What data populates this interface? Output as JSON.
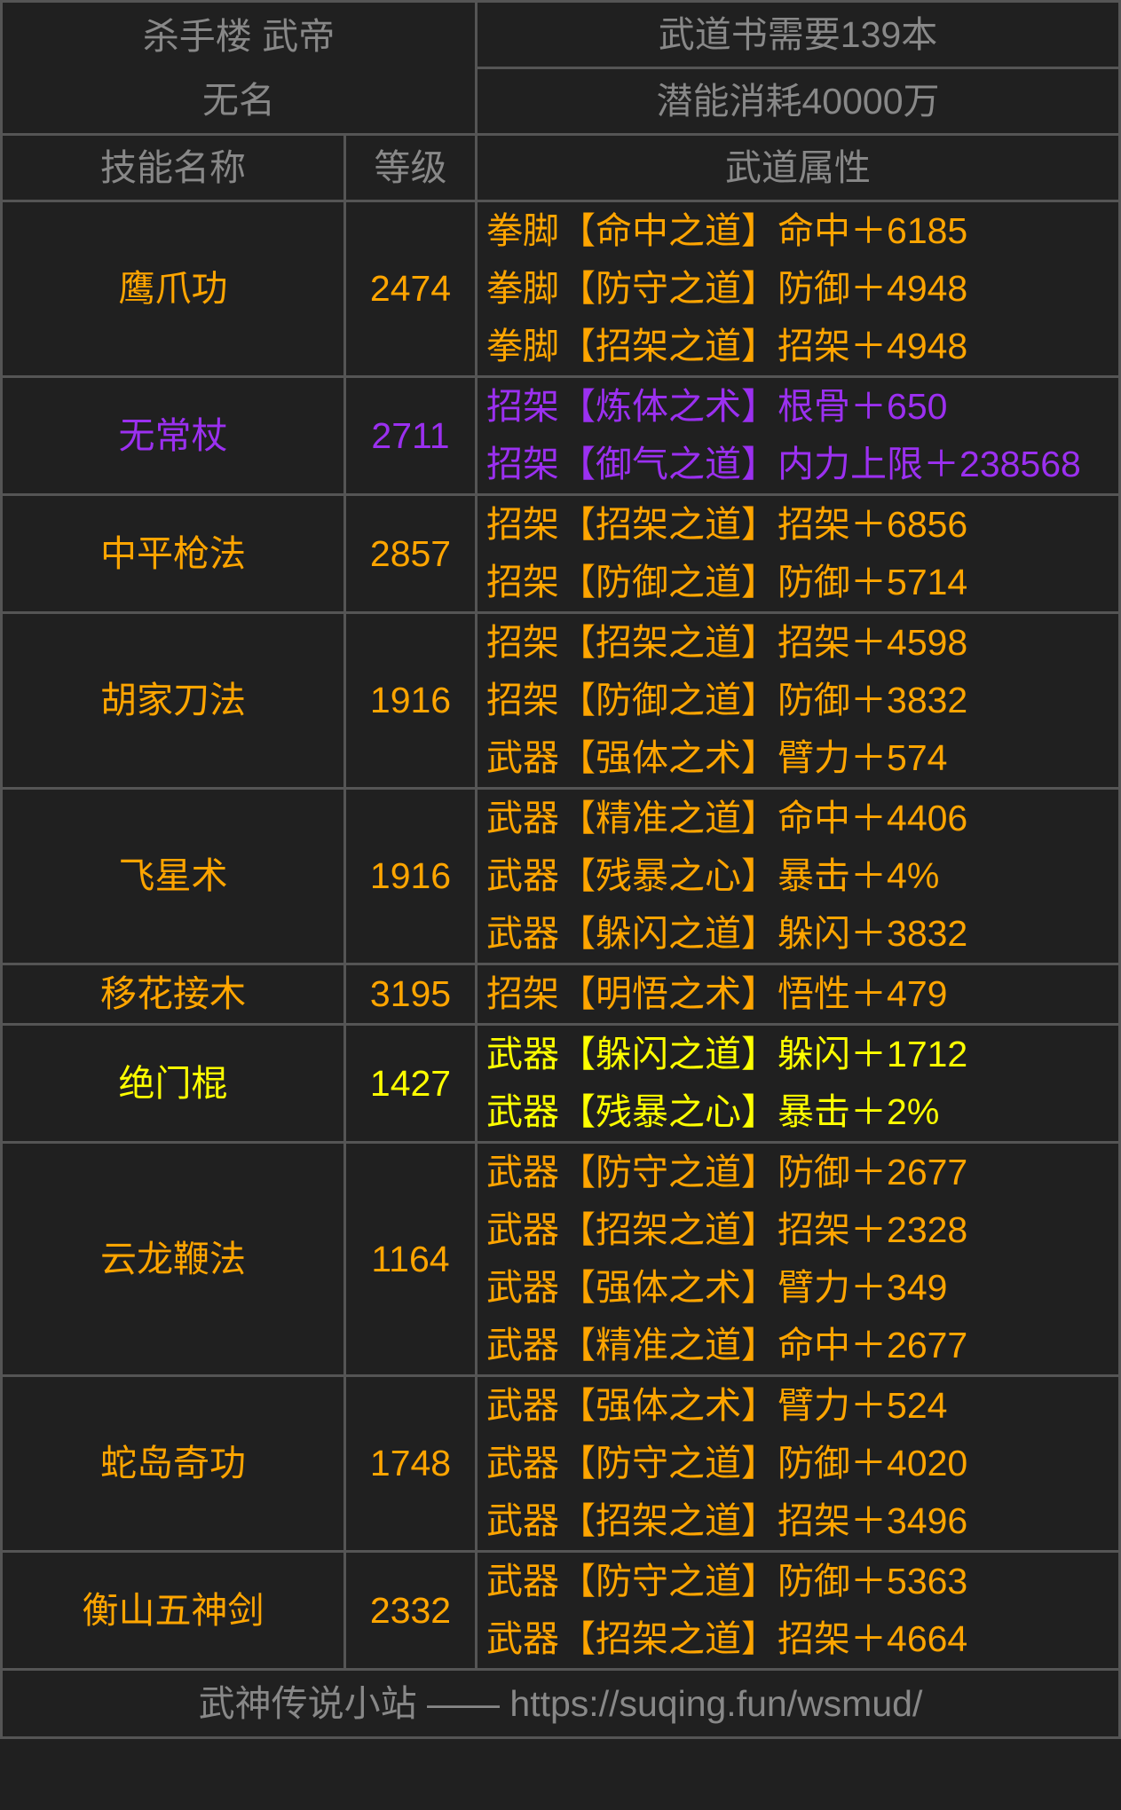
{
  "header": {
    "sect_rank": "杀手楼 武帝",
    "name": "无名",
    "books_needed": "武道书需要139本",
    "potential_cost": "潜能消耗40000万"
  },
  "columns": [
    "技能名称",
    "等级",
    "武道属性"
  ],
  "colors": {
    "orange": "#FFA500",
    "purple": "#9B30F0",
    "yellow": "#FFFF00",
    "gray": "#888888",
    "background": "#202020",
    "border": "#555555"
  },
  "skills": [
    {
      "name": "鹰爪功",
      "level": "2474",
      "color": "#FFA500",
      "attrs": [
        "拳脚【命中之道】命中＋6185",
        "拳脚【防守之道】防御＋4948",
        "拳脚【招架之道】招架＋4948"
      ]
    },
    {
      "name": "无常杖",
      "level": "2711",
      "color": "#9B30F0",
      "attrs": [
        "招架【炼体之术】根骨＋650",
        "招架【御气之道】内力上限＋238568"
      ]
    },
    {
      "name": "中平枪法",
      "level": "2857",
      "color": "#FFA500",
      "attrs": [
        "招架【招架之道】招架＋6856",
        "招架【防御之道】防御＋5714"
      ]
    },
    {
      "name": "胡家刀法",
      "level": "1916",
      "color": "#FFA500",
      "attrs": [
        "招架【招架之道】招架＋4598",
        "招架【防御之道】防御＋3832",
        "武器【强体之术】臂力＋574"
      ]
    },
    {
      "name": "飞星术",
      "level": "1916",
      "color": "#FFA500",
      "attrs": [
        "武器【精准之道】命中＋4406",
        "武器【残暴之心】暴击＋4%",
        "武器【躲闪之道】躲闪＋3832"
      ]
    },
    {
      "name": "移花接木",
      "level": "3195",
      "color": "#FFA500",
      "attrs": [
        "招架【明悟之术】悟性＋479"
      ]
    },
    {
      "name": "绝门棍",
      "level": "1427",
      "color": "#FFFF00",
      "attrs": [
        "武器【躲闪之道】躲闪＋1712",
        "武器【残暴之心】暴击＋2%"
      ]
    },
    {
      "name": "云龙鞭法",
      "level": "1164",
      "color": "#FFA500",
      "attrs": [
        "武器【防守之道】防御＋2677",
        "武器【招架之道】招架＋2328",
        "武器【强体之术】臂力＋349",
        "武器【精准之道】命中＋2677"
      ]
    },
    {
      "name": "蛇岛奇功",
      "level": "1748",
      "color": "#FFA500",
      "attrs": [
        "武器【强体之术】臂力＋524",
        "武器【防守之道】防御＋4020",
        "武器【招架之道】招架＋3496"
      ]
    },
    {
      "name": "衡山五神剑",
      "level": "2332",
      "color": "#FFA500",
      "attrs": [
        "武器【防守之道】防御＋5363",
        "武器【招架之道】招架＋4664"
      ]
    }
  ],
  "footer": "武神传说小站 —— https://suqing.fun/wsmud/"
}
